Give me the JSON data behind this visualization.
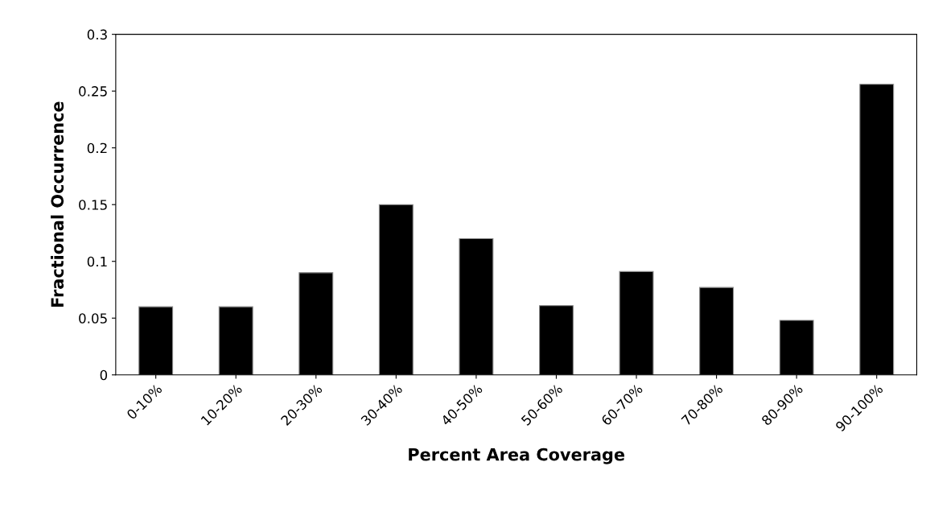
{
  "chart_data": {
    "type": "bar",
    "xlabel": "Percent Area Coverage",
    "ylabel": "Fractional Occurrence",
    "categories": [
      "0-10%",
      "10-20%",
      "20-30%",
      "30-40%",
      "40-50%",
      "50-60%",
      "60-70%",
      "70-80%",
      "80-90%",
      "90-100%"
    ],
    "values": [
      0.06,
      0.06,
      0.09,
      0.15,
      0.12,
      0.061,
      0.091,
      0.077,
      0.048,
      0.256
    ],
    "color": "#000000",
    "ylim": [
      0,
      0.3
    ],
    "yticks": [
      0,
      0.05,
      0.1,
      0.15,
      0.2,
      0.25,
      0.3
    ],
    "grid": false,
    "legend": false
  }
}
